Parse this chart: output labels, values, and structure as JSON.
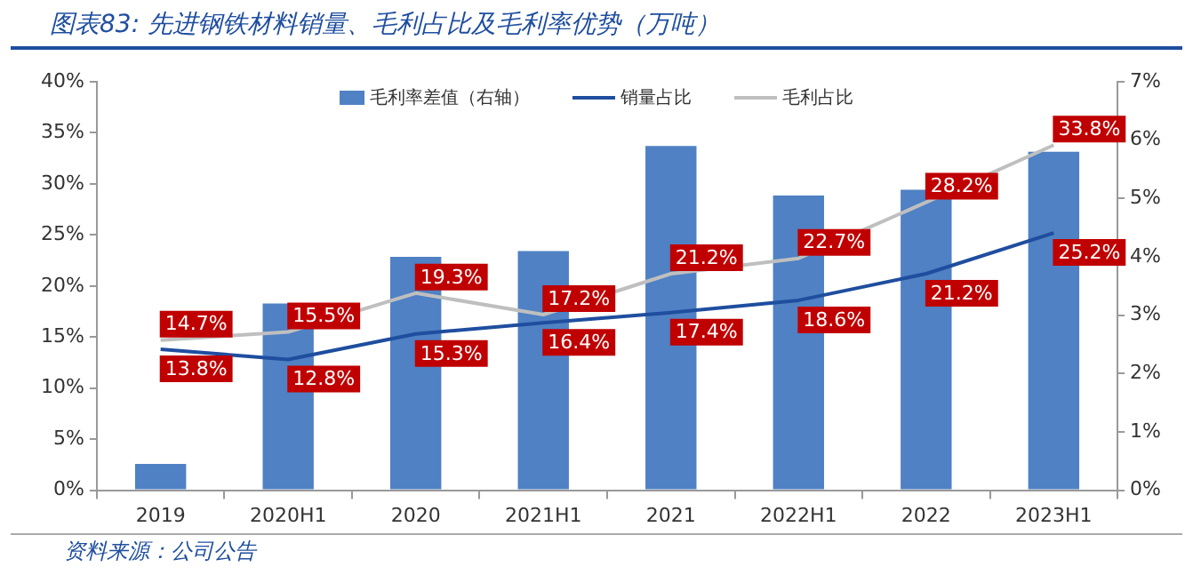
{
  "chart_data": {
    "type": "bar",
    "title": "图表83: 先进钢铁材料销量、毛利占比及毛利率优势（万吨）",
    "categories": [
      "2019",
      "2020H1",
      "2020",
      "2021H1",
      "2021",
      "2022H1",
      "2022",
      "2023H1"
    ],
    "series": [
      {
        "name": "毛利率差值（右轴）",
        "axis": "y2",
        "color": "#4f81c4",
        "values": [
          0.45,
          3.2,
          4.0,
          4.1,
          5.9,
          5.05,
          5.15,
          5.8
        ]
      },
      {
        "name": "销量占比",
        "type": "line",
        "color": "#1f4e9f",
        "values": [
          13.8,
          12.8,
          15.3,
          16.4,
          17.4,
          18.6,
          21.2,
          25.2
        ],
        "value_labels": [
          "13.8%",
          "12.8%",
          "15.3%",
          "16.4%",
          "17.4%",
          "18.6%",
          "21.2%",
          "25.2%"
        ]
      },
      {
        "name": "毛利占比",
        "type": "line",
        "color": "#bfbfbf",
        "values": [
          14.7,
          15.5,
          19.3,
          17.2,
          21.2,
          22.7,
          28.2,
          33.8
        ],
        "value_labels": [
          "14.7%",
          "15.5%",
          "19.3%",
          "17.2%",
          "21.2%",
          "22.7%",
          "28.2%",
          "33.8%"
        ]
      }
    ],
    "ylim": [
      0,
      40
    ],
    "yticks": [
      {
        "value": 0,
        "label": "0%"
      },
      {
        "value": 5,
        "label": "5%"
      },
      {
        "value": 10,
        "label": "10%"
      },
      {
        "value": 15,
        "label": "15%"
      },
      {
        "value": 20,
        "label": "20%"
      },
      {
        "value": 25,
        "label": "25%"
      },
      {
        "value": 30,
        "label": "30%"
      },
      {
        "value": 35,
        "label": "35%"
      },
      {
        "value": 40,
        "label": "40%"
      }
    ],
    "y2lim": [
      0,
      7
    ],
    "y2ticks": [
      {
        "value": 0,
        "label": "0%"
      },
      {
        "value": 1,
        "label": "1%"
      },
      {
        "value": 2,
        "label": "2%"
      },
      {
        "value": 3,
        "label": "3%"
      },
      {
        "value": 4,
        "label": "4%"
      },
      {
        "value": 5,
        "label": "5%"
      },
      {
        "value": 6,
        "label": "6%"
      },
      {
        "value": 7,
        "label": "7%"
      }
    ],
    "legend": "top",
    "grid": false,
    "marker": "none",
    "line_style": "solid",
    "annotations": [
      "资料来源：公司公告"
    ]
  }
}
